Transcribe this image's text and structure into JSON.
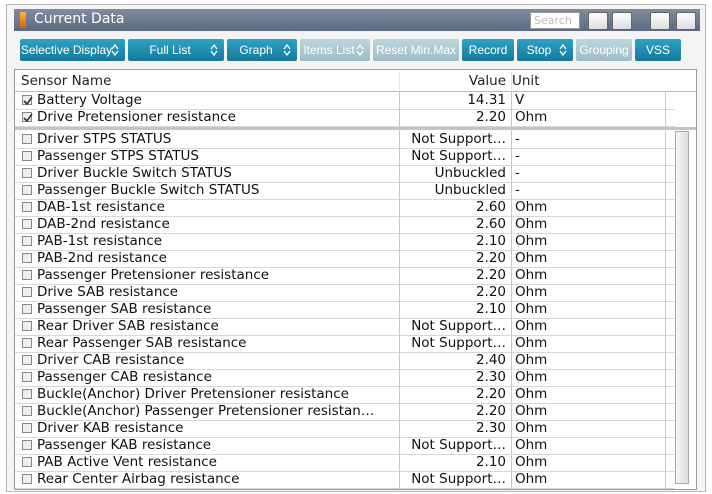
{
  "window": {
    "title": "Current Data",
    "search_placeholder": "Search"
  },
  "toolbar": {
    "buttons": [
      {
        "label": "Selective Display",
        "dropdown": true,
        "enabled": true
      },
      {
        "label": "Full List",
        "dropdown": true,
        "enabled": true
      },
      {
        "label": "Graph",
        "dropdown": true,
        "enabled": true
      },
      {
        "label": "Items List",
        "dropdown": true,
        "enabled": false
      },
      {
        "label": "Reset Min.Max",
        "dropdown": false,
        "enabled": false
      },
      {
        "label": "Record",
        "dropdown": false,
        "enabled": true
      },
      {
        "label": "Stop",
        "dropdown": true,
        "enabled": true
      },
      {
        "label": "Grouping",
        "dropdown": false,
        "enabled": false
      },
      {
        "label": "VSS",
        "dropdown": false,
        "enabled": true
      }
    ]
  },
  "table": {
    "headers": [
      "Sensor Name",
      "Value",
      "Unit"
    ],
    "pinned_rows": [
      {
        "checked": true,
        "name": "Battery Voltage",
        "value": "14.31",
        "unit": "V"
      },
      {
        "checked": true,
        "name": "Drive Pretensioner resistance",
        "value": "2.20",
        "unit": "Ohm"
      }
    ],
    "rows": [
      {
        "checked": false,
        "name": "Driver STPS STATUS",
        "value": "Not Support…",
        "unit": "-"
      },
      {
        "checked": false,
        "name": "Passenger STPS STATUS",
        "value": "Not Support…",
        "unit": "-"
      },
      {
        "checked": false,
        "name": "Driver Buckle Switch STATUS",
        "value": "Unbuckled",
        "unit": "-"
      },
      {
        "checked": false,
        "name": "Passenger Buckle Switch STATUS",
        "value": "Unbuckled",
        "unit": "-"
      },
      {
        "checked": false,
        "name": "DAB-1st resistance",
        "value": "2.60",
        "unit": "Ohm"
      },
      {
        "checked": false,
        "name": "DAB-2nd resistance",
        "value": "2.60",
        "unit": "Ohm"
      },
      {
        "checked": false,
        "name": "PAB-1st resistance",
        "value": "2.10",
        "unit": "Ohm"
      },
      {
        "checked": false,
        "name": "PAB-2nd resistance",
        "value": "2.20",
        "unit": "Ohm"
      },
      {
        "checked": false,
        "name": "Passenger Pretensioner resistance",
        "value": "2.20",
        "unit": "Ohm"
      },
      {
        "checked": false,
        "name": "Drive SAB resistance",
        "value": "2.20",
        "unit": "Ohm"
      },
      {
        "checked": false,
        "name": "Passenger SAB resistance",
        "value": "2.10",
        "unit": "Ohm"
      },
      {
        "checked": false,
        "name": "Rear Driver SAB resistance",
        "value": "Not Support…",
        "unit": "Ohm"
      },
      {
        "checked": false,
        "name": "Rear Passenger SAB resistance",
        "value": "Not Support…",
        "unit": "Ohm"
      },
      {
        "checked": false,
        "name": "Driver CAB resistance",
        "value": "2.40",
        "unit": "Ohm"
      },
      {
        "checked": false,
        "name": "Passenger CAB resistance",
        "value": "2.30",
        "unit": "Ohm"
      },
      {
        "checked": false,
        "name": "Buckle(Anchor) Driver Pretensioner resistance",
        "value": "2.20",
        "unit": "Ohm"
      },
      {
        "checked": false,
        "name": "Buckle(Anchor) Passenger Pretensioner resistan…",
        "value": "2.20",
        "unit": "Ohm"
      },
      {
        "checked": false,
        "name": "Driver KAB resistance",
        "value": "2.30",
        "unit": "Ohm"
      },
      {
        "checked": false,
        "name": "Passenger KAB resistance",
        "value": "Not Support…",
        "unit": "Ohm"
      },
      {
        "checked": false,
        "name": "PAB Active Vent resistance",
        "value": "2.10",
        "unit": "Ohm"
      },
      {
        "checked": false,
        "name": "Rear Center Airbag resistance",
        "value": "Not Support…",
        "unit": "Ohm"
      }
    ]
  }
}
